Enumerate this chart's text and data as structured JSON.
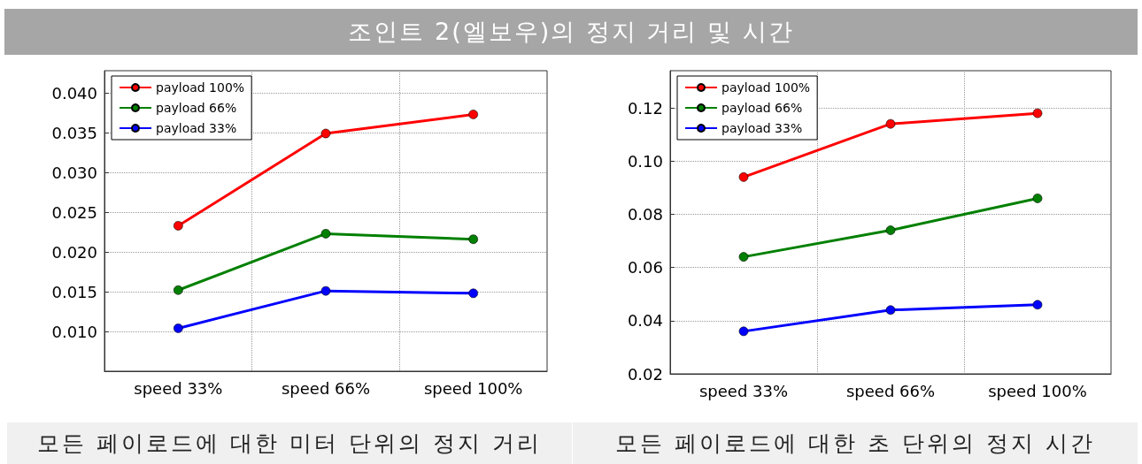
{
  "chart_data": [
    {
      "type": "line",
      "title": "조인트 2(엘보우)의 정지 거리 및 시간",
      "annotations": [
        "모든 페이로드에 대한 미터 단위의 정지 거리"
      ],
      "categories": [
        "speed 33%",
        "speed 66%",
        "speed 100%"
      ],
      "series": [
        {
          "name": "payload 100%",
          "color": "#ff0000",
          "values": [
            0.0233,
            0.0349,
            0.0373
          ]
        },
        {
          "name": "payload 66%",
          "color": "#008000",
          "values": [
            0.0152,
            0.0223,
            0.0216
          ]
        },
        {
          "name": "payload 33%",
          "color": "#0000ff",
          "values": [
            0.0104,
            0.0151,
            0.0148
          ]
        }
      ],
      "ylim": [
        0.005,
        0.0428
      ],
      "yticks": [
        {
          "value": 0.01,
          "label": "0.010"
        },
        {
          "value": 0.015,
          "label": "0.015"
        },
        {
          "value": 0.02,
          "label": "0.020"
        },
        {
          "value": 0.025,
          "label": "0.025"
        },
        {
          "value": 0.03,
          "label": "0.030"
        },
        {
          "value": 0.035,
          "label": "0.035"
        },
        {
          "value": 0.04,
          "label": "0.040"
        }
      ],
      "grid": true,
      "legend": "top left",
      "marker": "circle",
      "line_style": "solid"
    },
    {
      "type": "line",
      "annotations": [
        "모든 페이로드에 대한 초 단위의 정지 시간"
      ],
      "categories": [
        "speed 33%",
        "speed 66%",
        "speed 100%"
      ],
      "series": [
        {
          "name": "payload 100%",
          "color": "#ff0000",
          "values": [
            0.094,
            0.114,
            0.118
          ]
        },
        {
          "name": "payload 66%",
          "color": "#008000",
          "values": [
            0.064,
            0.074,
            0.086
          ]
        },
        {
          "name": "payload 33%",
          "color": "#0000ff",
          "values": [
            0.036,
            0.044,
            0.046
          ]
        }
      ],
      "ylim": [
        0.02,
        0.134
      ],
      "yticks": [
        {
          "value": 0.02,
          "label": "0.02"
        },
        {
          "value": 0.04,
          "label": "0.04"
        },
        {
          "value": 0.06,
          "label": "0.06"
        },
        {
          "value": 0.08,
          "label": "0.08"
        },
        {
          "value": 0.1,
          "label": "0.10"
        },
        {
          "value": 0.12,
          "label": "0.12"
        }
      ],
      "grid": true,
      "legend": "top left",
      "marker": "circle",
      "line_style": "solid"
    }
  ]
}
